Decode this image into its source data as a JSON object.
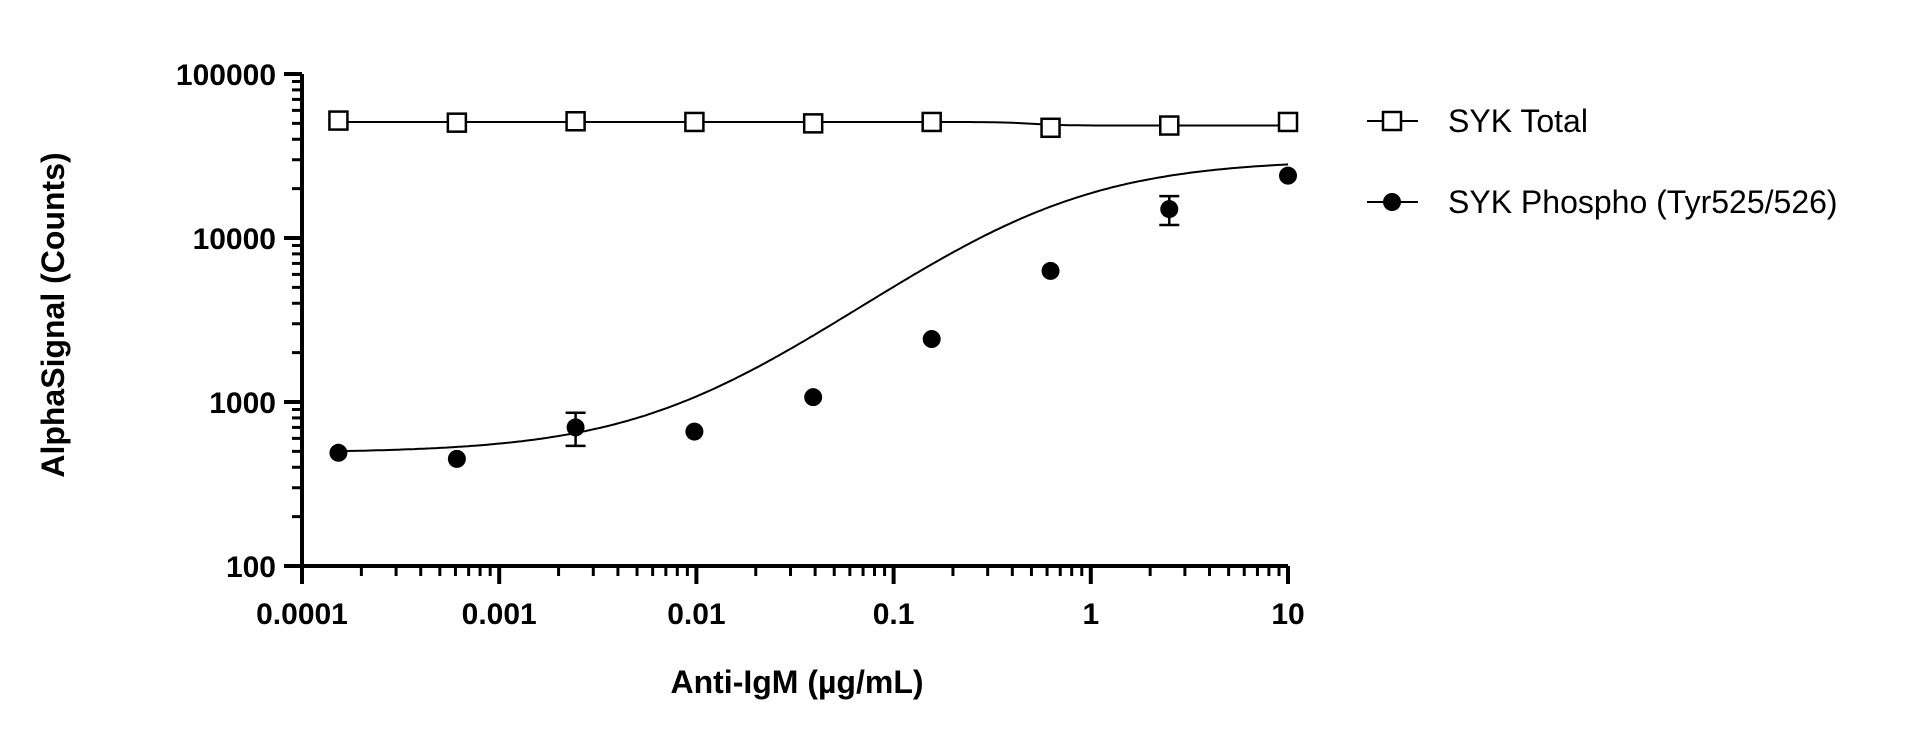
{
  "chart_data": {
    "type": "scatter",
    "title": "",
    "xlabel": "Anti-IgM (µg/mL)",
    "ylabel": "AlphaSignal (Counts)",
    "xscale": "log",
    "yscale": "log",
    "xlim": [
      0.0001,
      10
    ],
    "ylim": [
      100,
      100000
    ],
    "x_ticks": [
      {
        "value": 0.0001,
        "label": "0.0001"
      },
      {
        "value": 0.001,
        "label": "0.001"
      },
      {
        "value": 0.01,
        "label": "0.01"
      },
      {
        "value": 0.1,
        "label": "0.1"
      },
      {
        "value": 1,
        "label": "1"
      },
      {
        "value": 10,
        "label": "10"
      }
    ],
    "y_ticks": [
      {
        "value": 100,
        "label": "100"
      },
      {
        "value": 1000,
        "label": "1000"
      },
      {
        "value": 10000,
        "label": "10000"
      },
      {
        "value": 100000,
        "label": "100000"
      }
    ],
    "grid": false,
    "legend_position": "right",
    "series": [
      {
        "name": "SYK Total",
        "marker": "open-square",
        "color": "#000000",
        "x": [
          0.000153,
          0.00061,
          0.00244,
          0.00977,
          0.0391,
          0.156,
          0.625,
          2.5,
          10
        ],
        "y": [
          52000,
          50500,
          51500,
          51000,
          50000,
          51000,
          47000,
          48500,
          51000
        ],
        "error": [
          0,
          0,
          0,
          0,
          0,
          0,
          0,
          0,
          0
        ]
      },
      {
        "name": "SYK Phospho (Tyr525/526)",
        "marker": "filled-circle",
        "color": "#000000",
        "x": [
          0.000153,
          0.00061,
          0.00244,
          0.00977,
          0.0391,
          0.156,
          0.625,
          2.5,
          10
        ],
        "y": [
          490,
          450,
          700,
          660,
          1070,
          2420,
          6300,
          15000,
          24000
        ],
        "error": [
          0,
          0,
          160,
          0,
          0,
          0,
          0,
          3000,
          0
        ]
      }
    ]
  }
}
